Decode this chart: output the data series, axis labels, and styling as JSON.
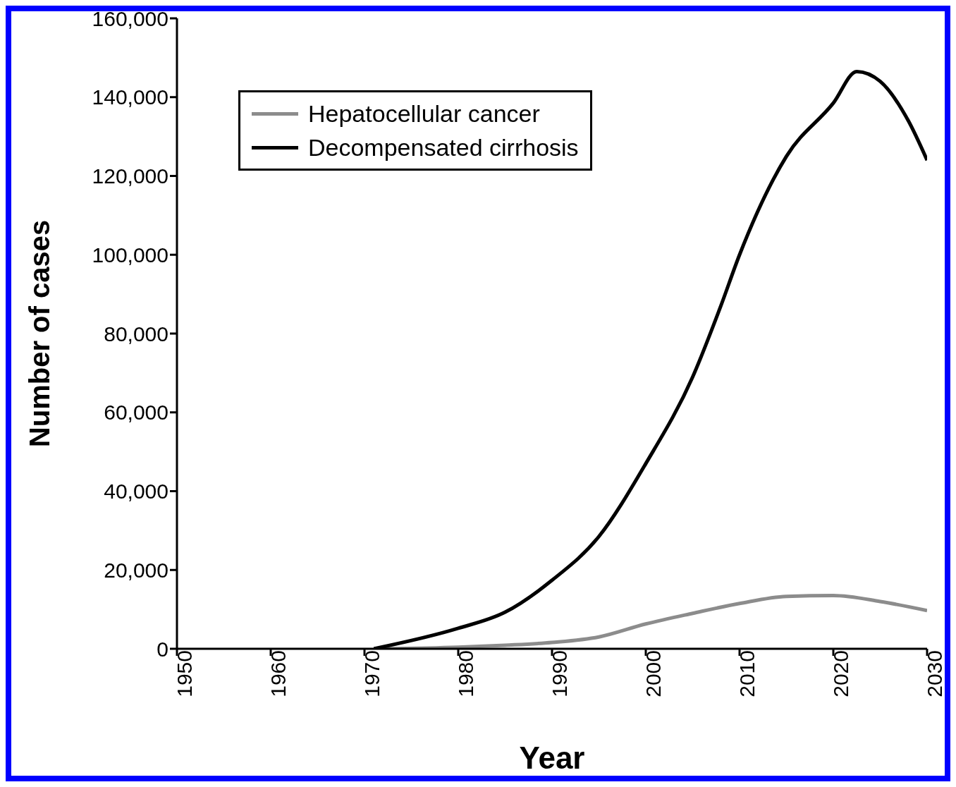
{
  "chart_data": {
    "type": "line",
    "xlabel": "Year",
    "ylabel": "Number of cases",
    "xlim": [
      1950,
      2030
    ],
    "xticks": [
      1950,
      1960,
      1970,
      1980,
      1990,
      2000,
      2010,
      2020,
      2030
    ],
    "ylim": [
      0,
      160000
    ],
    "yticks": [
      0,
      {
        "value": 20000,
        "label": "20,000"
      },
      {
        "value": 40000,
        "label": "40,000"
      },
      {
        "value": 60000,
        "label": "60,000"
      },
      {
        "value": 80000,
        "label": "80,000"
      },
      {
        "value": 100000,
        "label": "100,000"
      },
      {
        "value": 120000,
        "label": "120,000"
      },
      {
        "value": 140000,
        "label": "140,000"
      },
      {
        "value": 160000,
        "label": "160,000"
      }
    ],
    "grid": false,
    "legend": "top left",
    "marker": "none",
    "line_style": "solid",
    "series": [
      {
        "name": "Hepatocellular cancer",
        "color": "#8c8c8c",
        "x": [
          1972,
          1980,
          1985,
          1990,
          1995,
          2000,
          2005,
          2010,
          2015,
          2020,
          2025,
          2030
        ],
        "values": [
          0,
          400,
          900,
          1600,
          3000,
          6300,
          9000,
          11500,
          13300,
          13500,
          12000,
          9700
        ]
      },
      {
        "name": "Decompensated cirrhosis",
        "color": "#000000",
        "x": [
          1971,
          1980,
          1985,
          1990,
          1995,
          2000,
          2005,
          2008,
          2010,
          2015,
          2020,
          2022.5,
          2025,
          2028,
          2030
        ],
        "values": [
          0,
          5200,
          9300,
          17400,
          28500,
          47000,
          69000,
          87000,
          100000,
          125000,
          138500,
          146500,
          144000,
          134000,
          124000
        ]
      }
    ]
  }
}
